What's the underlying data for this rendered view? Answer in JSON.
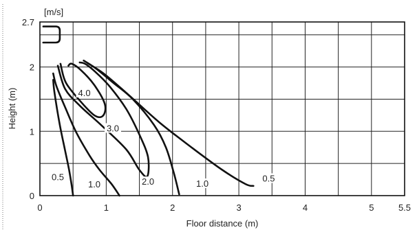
{
  "chart_data": {
    "type": "line",
    "title": "",
    "unit_label": "[m/s]",
    "xlabel": "Floor distance (m)",
    "ylabel": "Height (m)",
    "xlim": [
      0,
      5.5
    ],
    "ylim": [
      0,
      2.7
    ],
    "x_ticks": [
      {
        "value": 0,
        "label": "0"
      },
      {
        "value": 1,
        "label": "1"
      },
      {
        "value": 2,
        "label": "2"
      },
      {
        "value": 3,
        "label": "3"
      },
      {
        "value": 4,
        "label": "4"
      },
      {
        "value": 5,
        "label": "5"
      },
      {
        "value": 5.5,
        "label": "5.5"
      }
    ],
    "y_ticks": [
      {
        "value": 0,
        "label": "0"
      },
      {
        "value": 1,
        "label": "1"
      },
      {
        "value": 2,
        "label": "2"
      },
      {
        "value": 2.7,
        "label": "2.7"
      }
    ],
    "grid_x": [
      0.5,
      1,
      1.5,
      2,
      2.5,
      3,
      3.5,
      4,
      4.5,
      5
    ],
    "grid_y": [
      0.5,
      1,
      1.5,
      2,
      2.5
    ],
    "grid": true,
    "outlet": [
      [
        0.3,
        2.63
      ],
      [
        0.3,
        2.38
      ],
      [
        0.05,
        2.3
      ]
    ],
    "series": [
      {
        "name": "4.0",
        "values": [
          [
            0.31,
            2.05
          ],
          [
            0.39,
            1.76
          ],
          [
            0.6,
            1.48
          ],
          [
            0.82,
            1.25
          ],
          [
            0.95,
            1.24
          ],
          [
            0.98,
            1.42
          ],
          [
            0.82,
            1.72
          ],
          [
            0.62,
            1.95
          ],
          [
            0.48,
            2.05
          ],
          [
            0.43,
            2.02
          ]
        ]
      },
      {
        "name": "3.0",
        "values": [
          [
            0.27,
            2.02
          ],
          [
            0.38,
            1.66
          ],
          [
            0.6,
            1.4
          ],
          [
            0.92,
            1.1
          ],
          [
            1.3,
            0.72
          ],
          [
            1.5,
            0.4
          ],
          [
            1.62,
            0.3
          ],
          [
            1.63,
            0.6
          ],
          [
            1.5,
            0.95
          ],
          [
            1.3,
            1.35
          ],
          [
            1.05,
            1.7
          ],
          [
            0.83,
            1.93
          ],
          [
            0.68,
            2.05
          ],
          [
            0.6,
            2.07
          ]
        ]
      },
      {
        "name": "2.0",
        "values": [
          [
            0.66,
            2.1
          ],
          [
            0.84,
            1.98
          ],
          [
            1.1,
            1.76
          ],
          [
            1.4,
            1.5
          ],
          [
            1.72,
            1.1
          ],
          [
            1.9,
            0.75
          ],
          [
            2.02,
            0.35
          ],
          [
            2.1,
            0.02
          ]
        ]
      },
      {
        "name": "1.0",
        "values": [
          [
            0.72,
            2.06
          ],
          [
            0.96,
            1.9
          ],
          [
            1.3,
            1.6
          ],
          [
            1.8,
            1.14
          ],
          [
            2.3,
            0.74
          ],
          [
            2.75,
            0.4
          ],
          [
            3.1,
            0.18
          ],
          [
            3.22,
            0.15
          ]
        ]
      },
      {
        "name": "1.0",
        "values": [
          [
            0.2,
            1.9
          ],
          [
            0.25,
            1.7
          ],
          [
            0.39,
            1.35
          ],
          [
            0.55,
            0.98
          ],
          [
            0.75,
            0.62
          ],
          [
            0.9,
            0.4
          ],
          [
            1.08,
            0.18
          ],
          [
            1.2,
            0.0
          ]
        ]
      },
      {
        "name": "0.5",
        "values": [
          [
            0.2,
            1.8
          ],
          [
            0.22,
            1.6
          ],
          [
            0.3,
            1.1
          ],
          [
            0.38,
            0.7
          ],
          [
            0.44,
            0.4
          ],
          [
            0.48,
            0.15
          ],
          [
            0.5,
            0.0
          ]
        ]
      }
    ],
    "labels": [
      {
        "text": "4.0",
        "x": 0.67,
        "y": 1.57
      },
      {
        "text": "3.0",
        "x": 1.1,
        "y": 1.02
      },
      {
        "text": "2.0",
        "x": 1.63,
        "y": 0.19
      },
      {
        "text": "1.0",
        "x": 2.45,
        "y": 0.16
      },
      {
        "text": "0.5",
        "x": 3.45,
        "y": 0.24
      },
      {
        "text": "1.0",
        "x": 0.82,
        "y": 0.15
      },
      {
        "text": "0.5",
        "x": 0.27,
        "y": 0.26
      }
    ]
  }
}
